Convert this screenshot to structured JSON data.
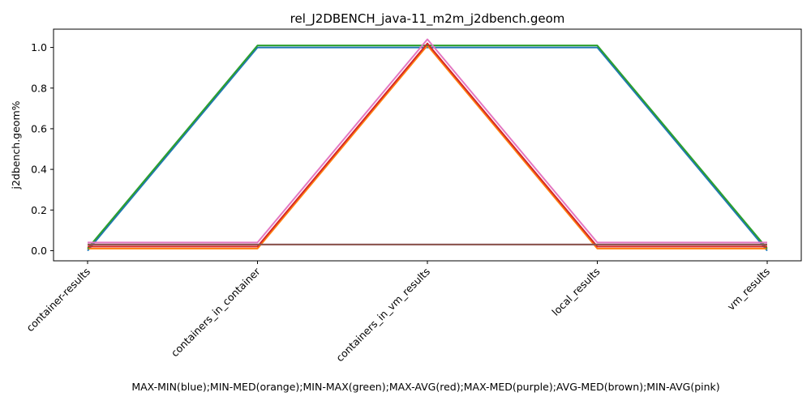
{
  "chart_data": {
    "type": "line",
    "title": "rel_J2DBENCH_java-11_m2m_j2dbench.geom",
    "xlabel": "MAX-MIN(blue);MIN-MED(orange);MIN-MAX(green);MAX-AVG(red);MAX-MED(purple);AVG-MED(brown);MIN-AVG(pink)",
    "ylabel": "j2dbench.geom%",
    "categories": [
      "container-results",
      "containers_in_container",
      "containers_in_vm_results",
      "local_results",
      "vm_results"
    ],
    "ylim": [
      -0.05,
      1.09
    ],
    "yticks": [
      "0.0",
      "0.2",
      "0.4",
      "0.6",
      "0.8",
      "1.0"
    ],
    "grid": false,
    "legend": "none",
    "series": [
      {
        "color": "#1f77b4",
        "values": [
          0.0,
          1.0,
          1.0,
          1.0,
          0.0
        ]
      },
      {
        "color": "#ff7f0e",
        "values": [
          0.01,
          0.01,
          1.01,
          0.01,
          0.01
        ]
      },
      {
        "color": "#2ca02c",
        "values": [
          0.01,
          1.01,
          1.01,
          1.01,
          0.01
        ]
      },
      {
        "color": "#d62728",
        "values": [
          0.02,
          0.02,
          1.02,
          0.02,
          0.02
        ]
      },
      {
        "color": "#9467bd",
        "values": [
          0.03,
          0.03,
          0.03,
          0.03,
          0.03
        ]
      },
      {
        "color": "#8c564b",
        "values": [
          0.03,
          0.03,
          0.03,
          0.03,
          0.03
        ]
      },
      {
        "color": "#e377c2",
        "values": [
          0.04,
          0.04,
          1.04,
          0.04,
          0.04
        ]
      }
    ]
  }
}
